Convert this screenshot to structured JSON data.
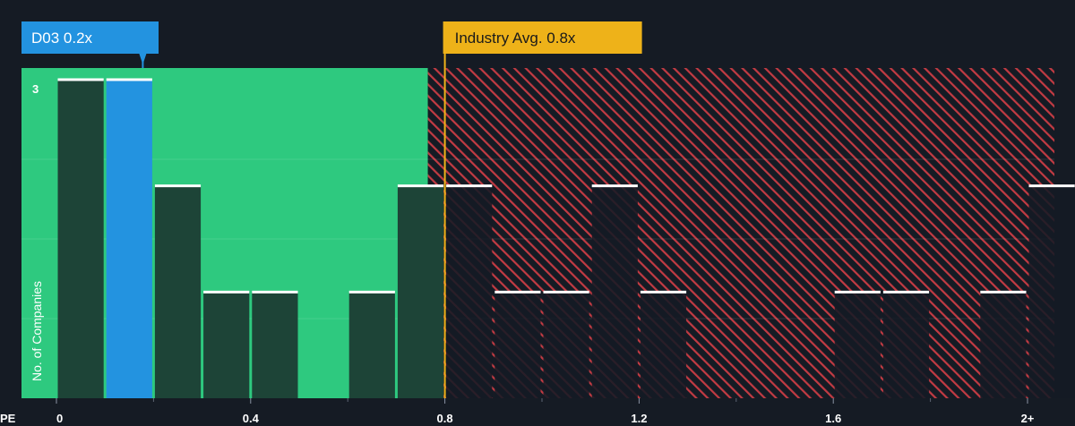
{
  "chart_data": {
    "type": "bar",
    "xlabel": "PE",
    "ylabel": "No. of Companies",
    "xlim": [
      0,
      2.05
    ],
    "ylim": [
      0,
      3
    ],
    "bin_width": 0.1,
    "x_ticks": [
      {
        "value": 0,
        "label": "0"
      },
      {
        "value": 0.4,
        "label": "0.4"
      },
      {
        "value": 0.8,
        "label": "0.8"
      },
      {
        "value": 1.2,
        "label": "1.2"
      },
      {
        "value": 1.6,
        "label": "1.6"
      },
      {
        "value": 2.0,
        "label": "2+"
      }
    ],
    "y_ticks": [
      {
        "value": 3,
        "label": "3"
      }
    ],
    "bins": [
      {
        "start": 0.0,
        "count": 3
      },
      {
        "start": 0.1,
        "count": 3,
        "highlight": true
      },
      {
        "start": 0.2,
        "count": 2
      },
      {
        "start": 0.3,
        "count": 1
      },
      {
        "start": 0.4,
        "count": 1
      },
      {
        "start": 0.6,
        "count": 1
      },
      {
        "start": 0.7,
        "count": 2
      },
      {
        "start": 0.8,
        "count": 2
      },
      {
        "start": 0.9,
        "count": 1
      },
      {
        "start": 1.0,
        "count": 1
      },
      {
        "start": 1.1,
        "count": 2
      },
      {
        "start": 1.2,
        "count": 1
      },
      {
        "start": 1.6,
        "count": 1
      },
      {
        "start": 1.7,
        "count": 1
      },
      {
        "start": 1.9,
        "count": 1
      },
      {
        "start": 2.0,
        "count": 2
      }
    ],
    "company": {
      "label": "D03 0.2x",
      "value": 0.2
    },
    "industry_avg": {
      "label": "Industry Avg. 0.8x",
      "value": 0.8
    },
    "fair_range_end": 0.765
  },
  "colors": {
    "background": "#151b24",
    "good_zone": "#2ec97f",
    "bad_zone_stripe": "#c23b43",
    "bar_dark": "#1d4437",
    "bar_highlight": "#2393e0",
    "bar_cap": "#ffffff",
    "industry": "#eeb219",
    "company_callout": "#2393e0"
  }
}
